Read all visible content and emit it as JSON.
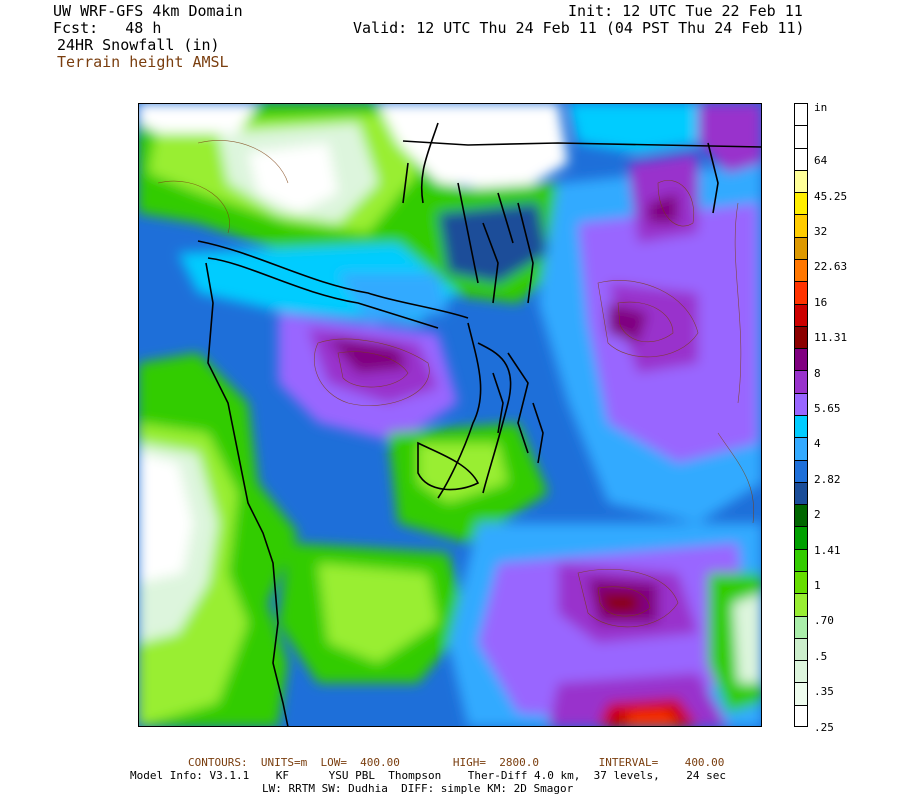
{
  "header": {
    "title": "UW WRF-GFS 4km Domain",
    "fcst": "Fcst:   48 h",
    "field": "24HR Snowfall (in)",
    "overlay": "Terrain height AMSL",
    "init": "Init: 12 UTC Tue 22 Feb 11",
    "valid": "Valid: 12 UTC Thu 24 Feb 11 (04 PST Thu 24 Feb 11)"
  },
  "colorbar": {
    "unit": "in",
    "labels": [
      "64",
      "45.25",
      "32",
      "22.63",
      "16",
      "11.31",
      "8",
      "5.65",
      "4",
      "2.82",
      "2",
      "1.41",
      "1",
      ".70",
      ".5",
      ".35",
      ".25"
    ],
    "colors": [
      "#ffffff",
      "#ffffff",
      "#ffffff",
      "#ffff99",
      "#ffee00",
      "#ffcc00",
      "#dd9900",
      "#ff7700",
      "#ff3300",
      "#cc0000",
      "#8b0000",
      "#800080",
      "#9933cc",
      "#9966ff",
      "#00ccff",
      "#33aaff",
      "#1e6fd9",
      "#1a4d99",
      "#006600",
      "#00a000",
      "#33cc00",
      "#66dd00",
      "#99ee33",
      "#aaeeaa",
      "#cceecc",
      "#ddf5dd",
      "#eefcee",
      "#ffffff"
    ]
  },
  "footer": {
    "contours": "CONTOURS:  UNITS=m  LOW=  400.00        HIGH=  2800.0         INTERVAL=    400.00",
    "model_info": "Model Info: V3.1.1    KF      YSU PBL  Thompson    Ther-Diff 4.0 km,  37 levels,    24 sec",
    "physics": "LW: RRTM SW: Dudhia  DIFF: simple KM: 2D Smagor"
  }
}
